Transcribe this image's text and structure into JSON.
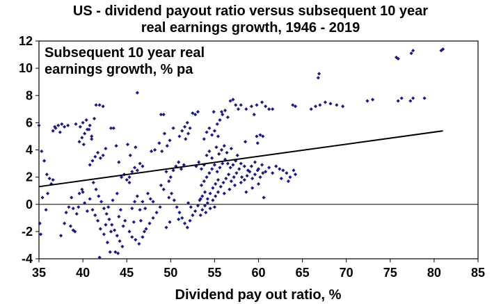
{
  "chart_data": {
    "type": "scatter",
    "title_line1": "US - dividend payout ratio versus subsequent 10 year",
    "title_line2": "real earnings growth, 1946 - 2019",
    "xlabel": "Dividend pay out ratio, %",
    "ylabel_line1": "Subsequent 10 year real",
    "ylabel_line2": "earnings growth, % pa",
    "xlim": [
      35,
      85
    ],
    "ylim": [
      -4,
      12
    ],
    "xticks": [
      "35",
      "40",
      "45",
      "50",
      "55",
      "60",
      "65",
      "70",
      "75",
      "80",
      "85"
    ],
    "yticks": [
      "-4",
      "-2",
      "0",
      "2",
      "4",
      "6",
      "8",
      "10",
      "12"
    ],
    "grid": false,
    "marker_color": "#1a1a80",
    "trend_line": {
      "x": [
        35,
        81
      ],
      "y": [
        1.3,
        5.4
      ]
    },
    "points": [
      [
        35.0,
        5.8
      ],
      [
        35.3,
        3.9
      ],
      [
        35.6,
        3.2
      ],
      [
        35.9,
        2.2
      ],
      [
        36.2,
        1.9
      ],
      [
        36.4,
        1.5
      ],
      [
        36.6,
        1.8
      ],
      [
        36.0,
        0.8
      ],
      [
        35.4,
        0.5
      ],
      [
        35.1,
        -1.4
      ],
      [
        35.2,
        -2.2
      ],
      [
        35.8,
        -0.4
      ],
      [
        36.6,
        5.4
      ],
      [
        36.9,
        5.6
      ],
      [
        37.2,
        5.8
      ],
      [
        37.6,
        5.9
      ],
      [
        37.9,
        5.7
      ],
      [
        38.3,
        5.8
      ],
      [
        37.4,
        5.3
      ],
      [
        36.8,
        5.7
      ],
      [
        38.1,
        -0.6
      ],
      [
        38.4,
        -0.2
      ],
      [
        38.7,
        0.5
      ],
      [
        38.9,
        -0.3
      ],
      [
        39.3,
        -0.7
      ],
      [
        39.6,
        0.8
      ],
      [
        39.9,
        1.1
      ],
      [
        40.2,
        0.1
      ],
      [
        40.5,
        -0.5
      ],
      [
        40.8,
        0.4
      ],
      [
        41.1,
        -0.4
      ],
      [
        38.6,
        -1.6
      ],
      [
        38.9,
        -1.9
      ],
      [
        37.9,
        -1.4
      ],
      [
        37.5,
        -2.3
      ],
      [
        39.1,
        -2.0
      ],
      [
        39.5,
        -0.2
      ],
      [
        40.0,
        0.9
      ],
      [
        39.6,
        4.6
      ],
      [
        39.9,
        4.9
      ],
      [
        40.2,
        5.2
      ],
      [
        40.5,
        5.5
      ],
      [
        40.8,
        5.8
      ],
      [
        40.0,
        6.0
      ],
      [
        40.4,
        6.2
      ],
      [
        40.7,
        5.5
      ],
      [
        41.0,
        4.8
      ],
      [
        41.3,
        6.3
      ],
      [
        39.7,
        5.7
      ],
      [
        39.2,
        5.9
      ],
      [
        40.1,
        4.4
      ],
      [
        41.0,
        5.0
      ],
      [
        40.8,
        2.9
      ],
      [
        41.1,
        3.2
      ],
      [
        41.4,
        3.5
      ],
      [
        41.7,
        3.8
      ],
      [
        42.0,
        3.4
      ],
      [
        42.3,
        3.6
      ],
      [
        42.6,
        4.1
      ],
      [
        41.5,
        7.3
      ],
      [
        41.9,
        7.3
      ],
      [
        42.3,
        7.2
      ],
      [
        43.2,
        5.6
      ],
      [
        43.5,
        5.6
      ],
      [
        43.8,
        4.3
      ],
      [
        44.1,
        3.1
      ],
      [
        44.4,
        2.0
      ],
      [
        44.7,
        2.2
      ],
      [
        45.0,
        1.8
      ],
      [
        45.3,
        1.6
      ],
      [
        41.2,
        1.6
      ],
      [
        41.5,
        1.1
      ],
      [
        41.8,
        0.6
      ],
      [
        42.1,
        0.2
      ],
      [
        42.4,
        -0.3
      ],
      [
        42.7,
        -0.7
      ],
      [
        43.0,
        -1.1
      ],
      [
        43.3,
        -1.5
      ],
      [
        43.6,
        -1.9
      ],
      [
        43.9,
        -2.3
      ],
      [
        44.2,
        -2.7
      ],
      [
        44.5,
        -3.1
      ],
      [
        44.8,
        -1.2
      ],
      [
        43.7,
        -3.5
      ],
      [
        44.0,
        -3.6
      ],
      [
        43.1,
        -3.5
      ],
      [
        42.8,
        -2.8
      ],
      [
        42.4,
        -2.2
      ],
      [
        42.0,
        -1.8
      ],
      [
        41.7,
        -1.2
      ],
      [
        41.4,
        -0.8
      ],
      [
        42.9,
        -0.2
      ],
      [
        43.4,
        0.3
      ],
      [
        43.9,
        0.8
      ],
      [
        44.3,
        -0.4
      ],
      [
        44.6,
        -1.6
      ],
      [
        41.9,
        -3.9
      ],
      [
        42.6,
        -1.5
      ],
      [
        43.2,
        -2.0
      ],
      [
        44.1,
        -0.9
      ],
      [
        45.3,
        2.0
      ],
      [
        45.6,
        2.4
      ],
      [
        45.9,
        2.7
      ],
      [
        46.2,
        2.5
      ],
      [
        46.5,
        3.0
      ],
      [
        46.8,
        2.8
      ],
      [
        45.1,
        4.4
      ],
      [
        45.4,
        3.6
      ],
      [
        46.0,
        4.2
      ],
      [
        46.2,
        8.2
      ],
      [
        47.8,
        3.9
      ],
      [
        48.2,
        4.0
      ],
      [
        48.7,
        4.5
      ],
      [
        49.0,
        3.9
      ],
      [
        49.3,
        5.2
      ],
      [
        49.6,
        4.3
      ],
      [
        49.9,
        4.7
      ],
      [
        48.9,
        6.6
      ],
      [
        49.2,
        6.6
      ],
      [
        50.3,
        5.6
      ],
      [
        45.6,
        -0.3
      ],
      [
        45.9,
        0.2
      ],
      [
        46.2,
        0.6
      ],
      [
        46.5,
        -0.4
      ],
      [
        46.8,
        0.2
      ],
      [
        47.1,
        -0.3
      ],
      [
        47.4,
        0.8
      ],
      [
        47.7,
        0.4
      ],
      [
        48.0,
        0.2
      ],
      [
        45.3,
        -2.0
      ],
      [
        45.6,
        -2.4
      ],
      [
        46.0,
        -2.6
      ],
      [
        46.4,
        -2.9
      ],
      [
        46.8,
        -2.4
      ],
      [
        47.2,
        -1.8
      ],
      [
        47.6,
        -1.4
      ],
      [
        48.0,
        -1.0
      ],
      [
        48.4,
        -0.6
      ],
      [
        48.8,
        -0.2
      ],
      [
        46.6,
        -1.2
      ],
      [
        47.0,
        -2.0
      ],
      [
        45.8,
        -1.3
      ],
      [
        50.0,
        2.0
      ],
      [
        50.3,
        2.5
      ],
      [
        50.6,
        2.8
      ],
      [
        50.9,
        3.1
      ],
      [
        51.2,
        2.6
      ],
      [
        51.5,
        2.9
      ],
      [
        49.5,
        2.4
      ],
      [
        49.8,
        1.7
      ],
      [
        48.9,
        1.4
      ],
      [
        49.2,
        1.1
      ],
      [
        51.0,
        5.0
      ],
      [
        51.3,
        5.4
      ],
      [
        51.6,
        5.7
      ],
      [
        51.9,
        6.0
      ],
      [
        52.2,
        5.6
      ],
      [
        52.5,
        6.7
      ],
      [
        52.8,
        6.6
      ],
      [
        53.1,
        6.8
      ],
      [
        52.0,
        5.2
      ],
      [
        51.7,
        4.8
      ],
      [
        49.8,
        0.5
      ],
      [
        50.1,
        0.8
      ],
      [
        50.4,
        0.3
      ],
      [
        50.7,
        -0.2
      ],
      [
        51.0,
        -0.6
      ],
      [
        51.3,
        -1.0
      ],
      [
        51.6,
        -1.4
      ],
      [
        51.9,
        -1.7
      ],
      [
        52.2,
        -1.2
      ],
      [
        52.5,
        -0.8
      ],
      [
        52.8,
        -0.5
      ],
      [
        53.1,
        -0.1
      ],
      [
        53.4,
        0.4
      ],
      [
        52.0,
        0.1
      ],
      [
        52.3,
        -0.2
      ],
      [
        50.9,
        -1.1
      ],
      [
        49.5,
        -1.7
      ],
      [
        49.9,
        -1.3
      ],
      [
        52.9,
        2.8
      ],
      [
        53.2,
        3.1
      ],
      [
        53.5,
        2.6
      ],
      [
        53.8,
        2.9
      ],
      [
        53.5,
        1.4
      ],
      [
        53.8,
        1.7
      ],
      [
        54.1,
        2.0
      ],
      [
        54.4,
        2.3
      ],
      [
        54.7,
        2.6
      ],
      [
        55.0,
        2.9
      ],
      [
        55.3,
        2.4
      ],
      [
        55.6,
        2.7
      ],
      [
        55.9,
        3.0
      ],
      [
        56.2,
        3.3
      ],
      [
        56.5,
        3.0
      ],
      [
        56.8,
        2.7
      ],
      [
        57.1,
        2.9
      ],
      [
        57.4,
        3.2
      ],
      [
        53.3,
        0.3
      ],
      [
        53.6,
        0.6
      ],
      [
        53.9,
        0.9
      ],
      [
        54.2,
        0.4
      ],
      [
        54.5,
        0.8
      ],
      [
        54.8,
        1.2
      ],
      [
        55.1,
        1.5
      ],
      [
        55.4,
        1.8
      ],
      [
        55.7,
        1.3
      ],
      [
        56.0,
        1.6
      ],
      [
        56.3,
        1.9
      ],
      [
        56.6,
        2.2
      ],
      [
        56.9,
        1.7
      ],
      [
        57.2,
        2.0
      ],
      [
        57.5,
        2.3
      ],
      [
        57.8,
        2.6
      ],
      [
        58.1,
        2.0
      ],
      [
        58.4,
        1.8
      ],
      [
        58.7,
        2.1
      ],
      [
        59.0,
        2.4
      ],
      [
        59.3,
        1.9
      ],
      [
        59.6,
        2.2
      ],
      [
        59.9,
        2.5
      ],
      [
        60.2,
        2.0
      ],
      [
        60.5,
        2.3
      ],
      [
        53.6,
        -0.4
      ],
      [
        53.9,
        -0.1
      ],
      [
        54.2,
        0.1
      ],
      [
        54.5,
        -0.3
      ],
      [
        54.8,
        0.3
      ],
      [
        55.1,
        0.6
      ],
      [
        55.4,
        0.9
      ],
      [
        55.0,
        -0.2
      ],
      [
        54.0,
        -0.6
      ],
      [
        53.4,
        -0.8
      ],
      [
        56.1,
        0.8
      ],
      [
        56.7,
        1.1
      ],
      [
        57.3,
        1.4
      ],
      [
        58.0,
        1.6
      ],
      [
        58.6,
        0.9
      ],
      [
        59.3,
        1.2
      ],
      [
        60.0,
        1.5
      ],
      [
        60.6,
        0.5
      ],
      [
        54.1,
        3.6
      ],
      [
        54.4,
        3.9
      ],
      [
        54.7,
        3.4
      ],
      [
        55.2,
        4.2
      ],
      [
        55.5,
        3.7
      ],
      [
        55.8,
        4.0
      ],
      [
        56.1,
        4.3
      ],
      [
        56.4,
        3.8
      ],
      [
        56.9,
        4.1
      ],
      [
        57.6,
        3.6
      ],
      [
        58.0,
        3.0
      ],
      [
        58.4,
        2.8
      ],
      [
        58.8,
        2.5
      ],
      [
        59.2,
        2.8
      ],
      [
        59.6,
        3.1
      ],
      [
        60.0,
        2.6
      ],
      [
        60.4,
        2.9
      ],
      [
        60.8,
        2.4
      ],
      [
        61.2,
        2.7
      ],
      [
        61.6,
        2.3
      ],
      [
        62.0,
        2.8
      ],
      [
        62.4,
        2.6
      ],
      [
        62.8,
        2.5
      ],
      [
        63.2,
        2.3
      ],
      [
        63.6,
        2.0
      ],
      [
        64.0,
        2.5
      ],
      [
        64.2,
        2.2
      ],
      [
        63.4,
        1.7
      ],
      [
        62.6,
        1.9
      ],
      [
        53.8,
        4.8
      ],
      [
        54.1,
        5.3
      ],
      [
        54.4,
        5.6
      ],
      [
        54.7,
        5.1
      ],
      [
        55.0,
        5.4
      ],
      [
        55.3,
        5.9
      ],
      [
        55.6,
        6.2
      ],
      [
        55.9,
        6.6
      ],
      [
        56.2,
        6.9
      ],
      [
        56.5,
        6.4
      ],
      [
        56.8,
        7.6
      ],
      [
        57.1,
        7.7
      ],
      [
        57.4,
        7.3
      ],
      [
        57.7,
        7.0
      ],
      [
        58.0,
        7.3
      ],
      [
        58.6,
        7.0
      ],
      [
        59.2,
        7.2
      ],
      [
        59.8,
        7.3
      ],
      [
        60.4,
        7.5
      ],
      [
        60.8,
        7.2
      ],
      [
        61.2,
        7.0
      ],
      [
        61.6,
        7.0
      ],
      [
        59.5,
        6.6
      ],
      [
        59.8,
        5.0
      ],
      [
        60.2,
        5.1
      ],
      [
        60.5,
        5.0
      ],
      [
        59.9,
        4.5
      ],
      [
        58.5,
        4.6
      ],
      [
        55.4,
        5.0
      ],
      [
        54.9,
        6.8
      ],
      [
        55.8,
        6.8
      ],
      [
        63.9,
        7.3
      ],
      [
        64.2,
        7.2
      ],
      [
        66.0,
        7.0
      ],
      [
        66.5,
        7.2
      ],
      [
        67.0,
        7.3
      ],
      [
        67.6,
        7.5
      ],
      [
        68.2,
        7.4
      ],
      [
        68.9,
        7.3
      ],
      [
        69.6,
        7.2
      ],
      [
        72.4,
        7.6
      ],
      [
        73.0,
        7.7
      ],
      [
        75.9,
        7.6
      ],
      [
        76.3,
        7.8
      ],
      [
        77.3,
        7.6
      ],
      [
        77.6,
        7.8
      ],
      [
        78.9,
        7.8
      ],
      [
        66.9,
        9.6
      ],
      [
        66.8,
        9.3
      ],
      [
        75.7,
        10.8
      ],
      [
        75.9,
        10.7
      ],
      [
        77.4,
        11.1
      ],
      [
        77.6,
        11.3
      ],
      [
        81.0,
        11.4
      ],
      [
        80.8,
        11.3
      ]
    ]
  }
}
